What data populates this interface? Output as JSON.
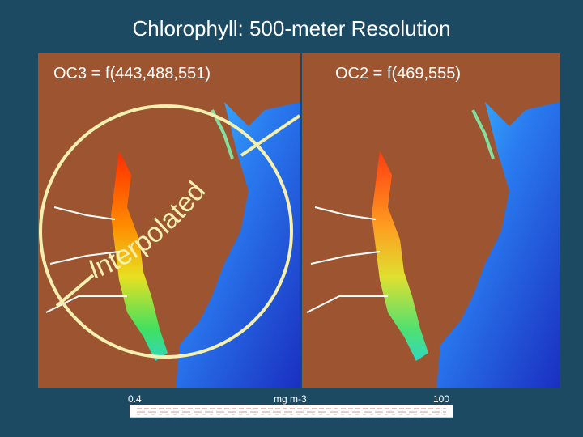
{
  "title": "Chlorophyll: 500-meter Resolution",
  "left_panel": {
    "label": "OC3 = f(443,488,551)"
  },
  "right_panel": {
    "label": "OC2 = f(469,555)"
  },
  "annotation": {
    "text": "Interpolated"
  },
  "scale": {
    "min_label": "0.4",
    "units_label": "mg m-3",
    "max_label": "100"
  },
  "colors": {
    "background": "#1d4a63",
    "land": "#9c5530",
    "ocean_low": "#1e3fd0",
    "chlorophyll_high": "#ff2a00",
    "circle": "#f5f0b0"
  }
}
